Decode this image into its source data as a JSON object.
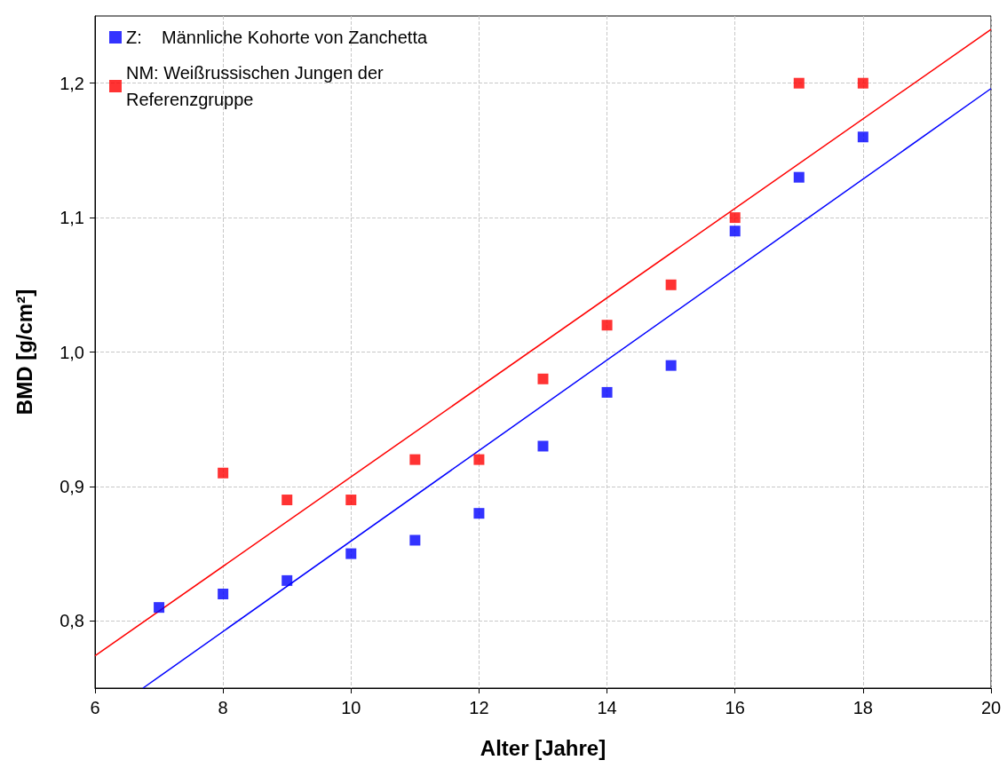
{
  "chart_data": {
    "type": "scatter",
    "xlabel": "Alter [Jahre]",
    "ylabel": "BMD [g/cm²]",
    "xlim": [
      6,
      20
    ],
    "xticks": [
      6,
      8,
      10,
      12,
      14,
      16,
      18,
      20
    ],
    "ylim": [
      0.75,
      1.25
    ],
    "yticks": [
      {
        "value": 0.8,
        "label": "0,8"
      },
      {
        "value": 0.9,
        "label": "0,9"
      },
      {
        "value": 1.0,
        "label": "1,0"
      },
      {
        "value": 1.1,
        "label": "1,1"
      },
      {
        "value": 1.2,
        "label": "1,2"
      }
    ],
    "grid": true,
    "legend": "top left",
    "marker": "square",
    "series": [
      {
        "name": "Z:    Männliche Kohorte von Zanchetta",
        "color": "#0000ff",
        "x": [
          7,
          8,
          9,
          10,
          11,
          12,
          13,
          14,
          15,
          16,
          17,
          18
        ],
        "values": [
          0.81,
          0.82,
          0.83,
          0.85,
          0.86,
          0.88,
          0.93,
          0.97,
          0.99,
          1.09,
          1.13,
          1.16
        ]
      },
      {
        "name": "NM: Weißrussischen Jungen der\nReferenzgruppe",
        "color": "#ff0000",
        "x": [
          8,
          9,
          10,
          11,
          12,
          13,
          14,
          15,
          16,
          17,
          18
        ],
        "values": [
          0.91,
          0.89,
          0.89,
          0.92,
          0.92,
          0.98,
          1.02,
          1.05,
          1.1,
          1.2,
          1.2
        ]
      },
      {
        "type": "line",
        "color": "#0000ff",
        "marker": "none",
        "x": [
          6.75,
          20
        ],
        "values": [
          0.75,
          1.196
        ]
      },
      {
        "type": "line",
        "color": "#ff0000",
        "marker": "none",
        "x": [
          6,
          20
        ],
        "values": [
          0.774,
          1.24
        ]
      }
    ]
  }
}
